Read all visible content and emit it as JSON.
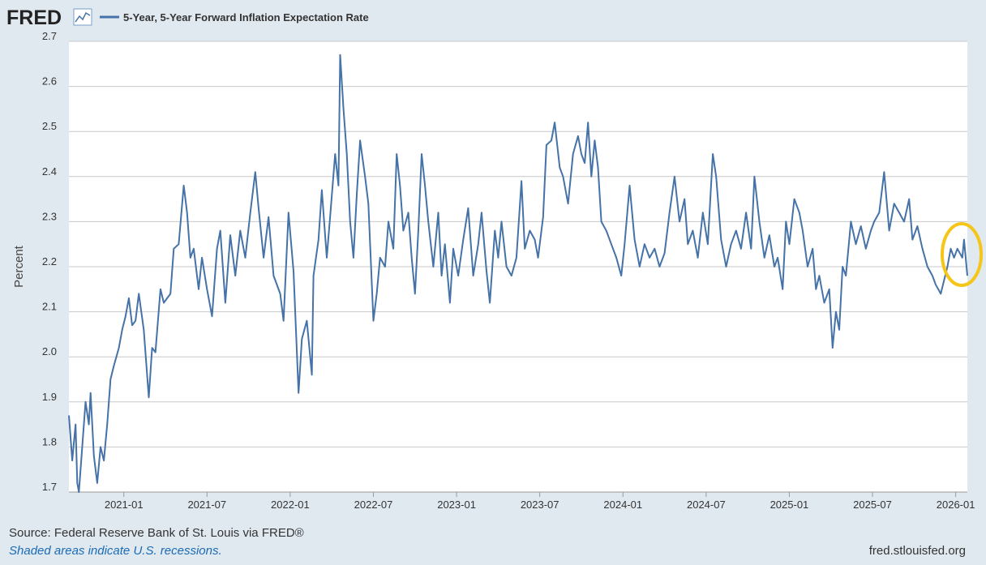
{
  "logo": "FRED",
  "chart_data": {
    "type": "line",
    "y_label": "Percent",
    "x": [
      2020.67,
      2020.69,
      2020.71,
      2020.72,
      2020.73,
      2020.75,
      2020.77,
      2020.79,
      2020.8,
      2020.82,
      2020.84,
      2020.86,
      2020.88,
      2020.9,
      2020.92,
      2020.94,
      2020.97,
      2020.99,
      2021.01,
      2021.03,
      2021.05,
      2021.07,
      2021.09,
      2021.12,
      2021.15,
      2021.17,
      2021.19,
      2021.22,
      2021.24,
      2021.28,
      2021.3,
      2021.33,
      2021.36,
      2021.38,
      2021.4,
      2021.42,
      2021.45,
      2021.47,
      2021.5,
      2021.53,
      2021.56,
      2021.58,
      2021.61,
      2021.64,
      2021.67,
      2021.7,
      2021.73,
      2021.76,
      2021.79,
      2021.81,
      2021.84,
      2021.87,
      2021.9,
      2021.94,
      2021.96,
      2021.99,
      2022.02,
      2022.05,
      2022.07,
      2022.1,
      2022.13,
      2022.14,
      2022.17,
      2022.19,
      2022.22,
      2022.24,
      2022.27,
      2022.29,
      2022.3,
      2022.32,
      2022.34,
      2022.36,
      2022.38,
      2022.4,
      2022.42,
      2022.45,
      2022.47,
      2022.5,
      2022.52,
      2022.54,
      2022.57,
      2022.59,
      2022.62,
      2022.64,
      2022.66,
      2022.68,
      2022.71,
      2022.73,
      2022.75,
      2022.77,
      2022.79,
      2022.81,
      2022.83,
      2022.86,
      2022.89,
      2022.91,
      2022.93,
      2022.96,
      2022.98,
      2023.01,
      2023.04,
      2023.07,
      2023.1,
      2023.13,
      2023.15,
      2023.18,
      2023.2,
      2023.23,
      2023.25,
      2023.27,
      2023.3,
      2023.33,
      2023.36,
      2023.39,
      2023.41,
      2023.44,
      2023.47,
      2023.49,
      2023.52,
      2023.54,
      2023.57,
      2023.59,
      2023.62,
      2023.64,
      2023.67,
      2023.7,
      2023.73,
      2023.75,
      2023.77,
      2023.79,
      2023.81,
      2023.83,
      2023.85,
      2023.87,
      2023.9,
      2023.93,
      2023.96,
      2023.99,
      2024.01,
      2024.04,
      2024.07,
      2024.1,
      2024.13,
      2024.16,
      2024.19,
      2024.22,
      2024.25,
      2024.28,
      2024.31,
      2024.34,
      2024.37,
      2024.39,
      2024.42,
      2024.45,
      2024.48,
      2024.51,
      2024.54,
      2024.56,
      2024.59,
      2024.62,
      2024.65,
      2024.68,
      2024.71,
      2024.74,
      2024.77,
      2024.79,
      2024.82,
      2024.85,
      2024.88,
      2024.91,
      2024.93,
      2024.96,
      2024.98,
      2025.0,
      2025.03,
      2025.06,
      2025.08,
      2025.11,
      2025.14,
      2025.16,
      2025.18,
      2025.21,
      2025.24,
      2025.26,
      2025.28,
      2025.3,
      2025.32,
      2025.34,
      2025.37,
      2025.4,
      2025.43,
      2025.46,
      2025.49,
      2025.51,
      2025.54,
      2025.57,
      2025.6,
      2025.63,
      2025.66,
      2025.69,
      2025.72,
      2025.74,
      2025.77,
      2025.8,
      2025.83,
      2025.86,
      2025.88,
      2025.91,
      2025.93,
      2025.95,
      2025.97,
      2025.99,
      2026.01,
      2026.04,
      2026.05,
      2026.07
    ],
    "series": [
      {
        "name": "5-Year, 5-Year Forward Inflation Expectation Rate",
        "color": "#4572a7",
        "values": [
          1.87,
          1.77,
          1.85,
          1.72,
          1.7,
          1.8,
          1.9,
          1.85,
          1.92,
          1.78,
          1.72,
          1.8,
          1.77,
          1.85,
          1.95,
          1.98,
          2.02,
          2.06,
          2.09,
          2.13,
          2.07,
          2.08,
          2.14,
          2.06,
          1.91,
          2.02,
          2.01,
          2.15,
          2.12,
          2.14,
          2.24,
          2.25,
          2.38,
          2.32,
          2.22,
          2.24,
          2.15,
          2.22,
          2.15,
          2.09,
          2.24,
          2.28,
          2.12,
          2.27,
          2.18,
          2.28,
          2.22,
          2.32,
          2.41,
          2.33,
          2.22,
          2.31,
          2.18,
          2.14,
          2.08,
          2.32,
          2.19,
          1.92,
          2.04,
          2.08,
          1.96,
          2.18,
          2.26,
          2.37,
          2.22,
          2.31,
          2.45,
          2.38,
          2.67,
          2.55,
          2.45,
          2.3,
          2.22,
          2.36,
          2.48,
          2.4,
          2.34,
          2.08,
          2.14,
          2.22,
          2.2,
          2.3,
          2.24,
          2.45,
          2.38,
          2.28,
          2.32,
          2.22,
          2.14,
          2.28,
          2.45,
          2.38,
          2.3,
          2.2,
          2.32,
          2.18,
          2.25,
          2.12,
          2.24,
          2.18,
          2.26,
          2.33,
          2.18,
          2.25,
          2.32,
          2.19,
          2.12,
          2.28,
          2.22,
          2.3,
          2.2,
          2.18,
          2.22,
          2.39,
          2.24,
          2.28,
          2.26,
          2.22,
          2.31,
          2.47,
          2.48,
          2.52,
          2.42,
          2.4,
          2.34,
          2.45,
          2.49,
          2.45,
          2.43,
          2.52,
          2.4,
          2.48,
          2.42,
          2.3,
          2.28,
          2.25,
          2.22,
          2.18,
          2.25,
          2.38,
          2.26,
          2.2,
          2.25,
          2.22,
          2.24,
          2.2,
          2.23,
          2.32,
          2.4,
          2.3,
          2.35,
          2.25,
          2.28,
          2.22,
          2.32,
          2.25,
          2.45,
          2.4,
          2.26,
          2.2,
          2.25,
          2.28,
          2.24,
          2.32,
          2.24,
          2.4,
          2.3,
          2.22,
          2.27,
          2.2,
          2.22,
          2.15,
          2.3,
          2.25,
          2.35,
          2.32,
          2.28,
          2.2,
          2.24,
          2.15,
          2.18,
          2.12,
          2.15,
          2.02,
          2.1,
          2.06,
          2.2,
          2.18,
          2.3,
          2.25,
          2.29,
          2.24,
          2.28,
          2.3,
          2.32,
          2.41,
          2.28,
          2.34,
          2.32,
          2.3,
          2.35,
          2.26,
          2.29,
          2.24,
          2.2,
          2.18,
          2.16,
          2.14,
          2.17,
          2.2,
          2.24,
          2.22,
          2.24,
          2.22,
          2.26,
          2.18
        ]
      }
    ],
    "xlim": [
      2020.67,
      2026.07
    ],
    "xticks": [
      {
        "value": 2021,
        "label": "2021-01"
      },
      {
        "value": 2021.5,
        "label": "2021-07"
      },
      {
        "value": 2022,
        "label": "2022-01"
      },
      {
        "value": 2022.5,
        "label": "2022-07"
      },
      {
        "value": 2023,
        "label": "2023-01"
      },
      {
        "value": 2023.5,
        "label": "2023-07"
      },
      {
        "value": 2024,
        "label": "2024-01"
      },
      {
        "value": 2024.5,
        "label": "2024-07"
      },
      {
        "value": 2025,
        "label": "2025-01"
      },
      {
        "value": 2025.5,
        "label": "2025-07"
      },
      {
        "value": 2026,
        "label": "2026-01"
      }
    ],
    "ylim": [
      1.7,
      2.7
    ],
    "yticks": [
      1.7,
      1.8,
      1.9,
      {
        "value": 2,
        "label": "2.0"
      },
      2.1,
      2.2,
      2.3,
      2.4,
      2.5,
      2.6,
      2.7
    ],
    "grid": true
  },
  "footer": {
    "source": "Source: Federal Reserve Bank of St. Louis via FRED®",
    "note": "Shaded areas indicate U.S. recessions.",
    "site": "fred.stlouisfed.org"
  }
}
